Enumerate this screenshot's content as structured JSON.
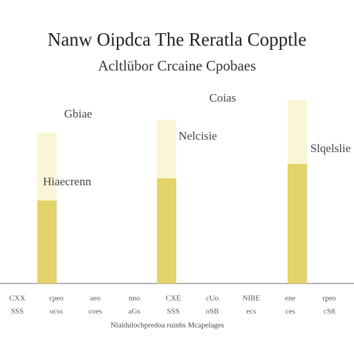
{
  "chart_data": {
    "type": "bar",
    "title": "Nanw Oipdca The Reratla Copptle",
    "subtitle": "Acltlübor Crcaine Cpobaes",
    "categories": [
      "CXX",
      "cpeo",
      "aeo",
      "nno",
      "CXE",
      "cUo",
      "NIBE",
      "ene",
      "rpeo"
    ],
    "category_sublabels": [
      "SSS",
      "ocss",
      "coes",
      "aGs",
      "SSS",
      "oSB",
      "ecs",
      "ces",
      "cS8"
    ],
    "series": [
      {
        "color": "#e3d36a",
        "values": [
          null,
          120,
          null,
          null,
          152,
          null,
          null,
          173,
          null
        ]
      },
      {
        "color": "#faf5d5",
        "values": [
          null,
          98,
          null,
          null,
          85,
          null,
          null,
          92,
          null
        ]
      }
    ],
    "annotations": [
      "Gbiae",
      "Hiaecrenn",
      "Nelcisie",
      "Coias",
      "Slqelslie"
    ],
    "footer": "Nlaidulocbpredoa ruinbs Mcapelages",
    "ylim": [
      0,
      300
    ]
  }
}
